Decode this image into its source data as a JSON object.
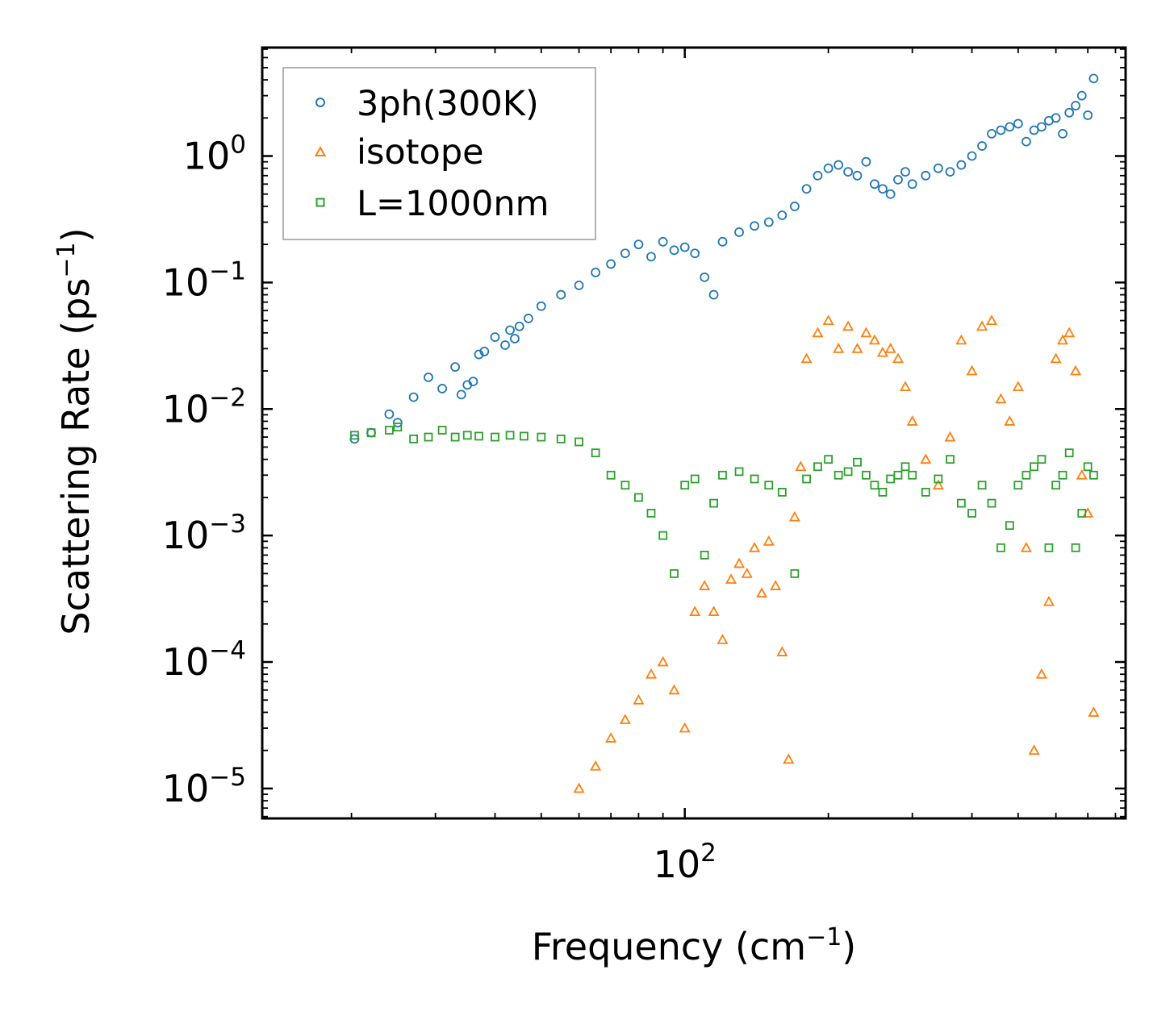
{
  "chart_data": {
    "type": "scatter",
    "title": "",
    "xlabel": {
      "main": "Frequency (cm",
      "exp": "−1",
      "tail": ")"
    },
    "ylabel": {
      "main": "Scattering Rate (ps",
      "exp": "−1",
      "tail": ")"
    },
    "xscale": "log",
    "yscale": "log",
    "xlim": [
      13,
      840
    ],
    "ylim": [
      5.8e-06,
      7.2
    ],
    "x_ticks": [
      {
        "value": 100,
        "base": "10",
        "exp": "2"
      }
    ],
    "y_ticks": [
      {
        "value": 1,
        "base": "10",
        "exp": "0"
      },
      {
        "value": 0.1,
        "base": "10",
        "exp": "−1"
      },
      {
        "value": 0.01,
        "base": "10",
        "exp": "−2"
      },
      {
        "value": 0.001,
        "base": "10",
        "exp": "−3"
      },
      {
        "value": 0.0001,
        "base": "10",
        "exp": "−4"
      },
      {
        "value": 1e-05,
        "base": "10",
        "exp": "−5"
      }
    ],
    "legend_position": "top-left",
    "series": [
      {
        "name": "3ph(300K)",
        "marker": "circle",
        "color": "#1f77b4",
        "x": [
          20.3,
          22,
          24,
          25,
          27,
          29,
          31,
          33,
          34,
          35,
          36,
          37,
          38,
          40,
          42,
          43,
          44,
          45,
          47,
          50,
          55,
          60,
          65,
          70,
          75,
          80,
          85,
          90,
          95,
          100,
          105,
          110,
          115,
          120,
          130,
          140,
          150,
          160,
          170,
          180,
          190,
          200,
          210,
          220,
          230,
          240,
          250,
          260,
          270,
          280,
          290,
          300,
          320,
          340,
          360,
          380,
          400,
          420,
          440,
          460,
          480,
          500,
          520,
          540,
          560,
          580,
          600,
          620,
          640,
          660,
          680,
          700,
          720
        ],
        "y": [
          0.0058,
          0.0065,
          0.0091,
          0.0078,
          0.0124,
          0.0178,
          0.0145,
          0.0215,
          0.013,
          0.0155,
          0.0165,
          0.027,
          0.0285,
          0.037,
          0.032,
          0.042,
          0.036,
          0.045,
          0.052,
          0.065,
          0.08,
          0.095,
          0.12,
          0.14,
          0.17,
          0.2,
          0.16,
          0.21,
          0.18,
          0.19,
          0.17,
          0.11,
          0.08,
          0.21,
          0.25,
          0.28,
          0.3,
          0.34,
          0.4,
          0.55,
          0.7,
          0.8,
          0.85,
          0.75,
          0.7,
          0.9,
          0.6,
          0.55,
          0.5,
          0.65,
          0.75,
          0.6,
          0.7,
          0.8,
          0.75,
          0.85,
          1.0,
          1.2,
          1.5,
          1.6,
          1.7,
          1.8,
          1.3,
          1.6,
          1.7,
          1.9,
          2.0,
          1.5,
          2.2,
          2.5,
          3.0,
          2.1,
          4.1
        ]
      },
      {
        "name": "isotope",
        "marker": "triangle",
        "color": "#ff7f0e",
        "x": [
          60,
          65,
          70,
          75,
          80,
          85,
          90,
          95,
          100,
          105,
          110,
          115,
          120,
          125,
          130,
          135,
          140,
          145,
          150,
          155,
          160,
          165,
          170,
          175,
          180,
          190,
          200,
          210,
          220,
          230,
          240,
          250,
          260,
          270,
          280,
          290,
          300,
          320,
          340,
          360,
          380,
          400,
          420,
          440,
          460,
          480,
          500,
          520,
          540,
          560,
          580,
          600,
          620,
          640,
          660,
          680,
          700,
          720
        ],
        "y": [
          1e-05,
          1.5e-05,
          2.5e-05,
          3.5e-05,
          5e-05,
          8e-05,
          0.0001,
          6e-05,
          3e-05,
          0.00025,
          0.0004,
          0.00025,
          0.00015,
          0.00045,
          0.0006,
          0.0005,
          0.0008,
          0.00035,
          0.0009,
          0.0004,
          0.00012,
          1.7e-05,
          0.0014,
          0.0035,
          0.025,
          0.04,
          0.05,
          0.03,
          0.045,
          0.03,
          0.04,
          0.035,
          0.028,
          0.03,
          0.025,
          0.015,
          0.008,
          0.004,
          0.0025,
          0.006,
          0.035,
          0.02,
          0.045,
          0.05,
          0.012,
          0.008,
          0.015,
          0.0008,
          2e-05,
          8e-05,
          0.0003,
          0.025,
          0.035,
          0.04,
          0.02,
          0.003,
          0.0015,
          4e-05
        ]
      },
      {
        "name": "L=1000nm",
        "marker": "square",
        "color": "#2ca02c",
        "x": [
          20.3,
          22,
          24,
          25,
          27,
          29,
          31,
          33,
          35,
          37,
          40,
          43,
          46,
          50,
          55,
          60,
          65,
          70,
          75,
          80,
          85,
          90,
          95,
          100,
          105,
          110,
          115,
          120,
          130,
          140,
          150,
          160,
          170,
          180,
          190,
          200,
          210,
          220,
          230,
          240,
          250,
          260,
          270,
          280,
          290,
          300,
          320,
          340,
          360,
          380,
          400,
          420,
          440,
          460,
          480,
          500,
          520,
          540,
          560,
          580,
          600,
          620,
          640,
          660,
          680,
          700,
          720
        ],
        "y": [
          0.0062,
          0.0065,
          0.0068,
          0.0072,
          0.0058,
          0.006,
          0.0068,
          0.006,
          0.0062,
          0.0061,
          0.006,
          0.0062,
          0.0061,
          0.006,
          0.0058,
          0.0055,
          0.0045,
          0.003,
          0.0025,
          0.002,
          0.0015,
          0.001,
          0.0005,
          0.0025,
          0.0028,
          0.0007,
          0.0018,
          0.003,
          0.0032,
          0.0028,
          0.0025,
          0.0022,
          0.0005,
          0.0028,
          0.0035,
          0.004,
          0.003,
          0.0032,
          0.0038,
          0.003,
          0.0025,
          0.0022,
          0.0028,
          0.003,
          0.0035,
          0.003,
          0.0022,
          0.0028,
          0.004,
          0.0018,
          0.0015,
          0.0025,
          0.0018,
          0.0008,
          0.0012,
          0.0025,
          0.003,
          0.0035,
          0.004,
          0.0008,
          0.0025,
          0.003,
          0.0045,
          0.0008,
          0.0015,
          0.0035,
          0.003
        ]
      }
    ]
  }
}
